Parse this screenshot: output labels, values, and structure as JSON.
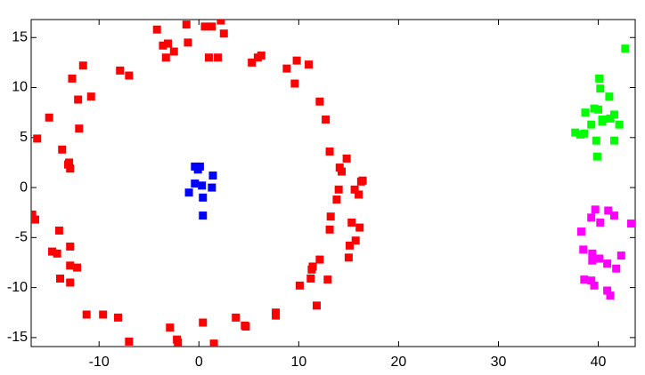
{
  "chart_data": {
    "type": "scatter",
    "xlim": [
      -16.8,
      43.7
    ],
    "ylim": [
      -15.9,
      16.8
    ],
    "xticks": [
      -10,
      0,
      10,
      20,
      30,
      40
    ],
    "yticks": [
      -15,
      -10,
      -5,
      0,
      5,
      10,
      15
    ],
    "marker": "square",
    "series": [
      {
        "color": "#ff0000",
        "x": [
          -4.2,
          -3.1,
          -3.6,
          -3.3,
          -2.5,
          -1.25,
          -1.1,
          0.6,
          1.3,
          2.2,
          2.5,
          1.0,
          1.9,
          5.3,
          5.9,
          6.25,
          8.8,
          9.8,
          11.0,
          9.6,
          12.1,
          12.7,
          13.1,
          14.3,
          14.1,
          14.8,
          13.8,
          13.2,
          13.1,
          14.0,
          15.6,
          16.25,
          16.4,
          16.0,
          15.3,
          16.1,
          15.7,
          15.1,
          15.0,
          12.1,
          11.4,
          11.2,
          11.3,
          12.9,
          10.1,
          11.8,
          7.7,
          7.7,
          4.7,
          4.6,
          3.7,
          1.5,
          0.4,
          -2.2,
          -2.9,
          -2.1,
          -7.0,
          -9.6,
          -11.25,
          -8.1,
          -12.2,
          -12.9,
          -13.9,
          -12.9,
          -12.9,
          -14.2,
          -14.7,
          -14.0,
          -16.7,
          -16.4,
          -16.2,
          -15.0,
          -13.7,
          -13.0,
          -12.9,
          -13.1,
          -12.0,
          -10.8,
          -12.1,
          -12.7,
          -11.6,
          -7.9,
          -7.0
        ],
        "y": [
          15.8,
          14.4,
          14.2,
          13.0,
          13.6,
          16.3,
          14.5,
          16.1,
          16.1,
          16.7,
          15.4,
          13.0,
          13.0,
          12.5,
          13.0,
          13.2,
          11.9,
          12.7,
          12.3,
          10.4,
          8.6,
          6.8,
          3.6,
          1.6,
          2.0,
          2.9,
          -1.2,
          -2.9,
          -4.2,
          -0.2,
          -0.2,
          0.6,
          0.7,
          -0.7,
          -3.5,
          -4.0,
          -5.3,
          -5.8,
          -7.0,
          -7.2,
          -7.9,
          -9.1,
          -8.2,
          -9.2,
          -9.8,
          -11.8,
          -12.5,
          -12.8,
          -13.9,
          -13.8,
          -13.0,
          -15.6,
          -13.5,
          -15.2,
          -14.0,
          -15.5,
          -15.4,
          -12.7,
          -12.7,
          -13.0,
          -8.0,
          -7.8,
          -9.1,
          -9.5,
          -5.9,
          -6.6,
          -6.4,
          -4.3,
          -2.7,
          -3.2,
          4.9,
          7.0,
          3.8,
          2.5,
          1.9,
          2.3,
          5.9,
          9.1,
          8.8,
          10.9,
          12.2,
          11.7,
          11.2
        ]
      },
      {
        "color": "#0000ff",
        "x": [
          -0.4,
          0.1,
          -0.1,
          1.4,
          -0.4,
          0.3,
          -1.0,
          1.3,
          0.4,
          0.4
        ],
        "y": [
          2.1,
          2.1,
          1.8,
          1.2,
          0.4,
          0.2,
          -0.5,
          0.0,
          -1.0,
          -2.8
        ]
      },
      {
        "color": "#00ff00",
        "x": [
          42.7,
          40.1,
          40.2,
          41.1,
          39.6,
          40.0,
          38.7,
          41.6,
          41.2,
          42.1,
          39.3,
          40.4,
          40.4,
          37.7,
          38.6,
          38.2,
          39.8,
          41.6,
          39.9
        ],
        "y": [
          13.9,
          10.9,
          9.9,
          9.1,
          7.9,
          7.8,
          7.5,
          7.3,
          6.9,
          6.3,
          6.3,
          6.8,
          6.6,
          5.5,
          5.4,
          5.3,
          4.7,
          4.7,
          3.1
        ]
      },
      {
        "color": "#ff00ff",
        "x": [
          39.7,
          41.0,
          39.3,
          41.6,
          40.2,
          43.3,
          38.3,
          38.5,
          39.4,
          40.1,
          39.4,
          42.3,
          41.8,
          40.9,
          38.6,
          39.3,
          39.6,
          40.9,
          41.2
        ],
        "y": [
          -2.2,
          -2.3,
          -3.0,
          -2.8,
          -3.5,
          -3.6,
          -4.4,
          -6.2,
          -6.6,
          -7.1,
          -7.3,
          -6.8,
          -8.1,
          -7.6,
          -9.2,
          -9.3,
          -9.8,
          -10.3,
          -10.8
        ]
      }
    ]
  }
}
